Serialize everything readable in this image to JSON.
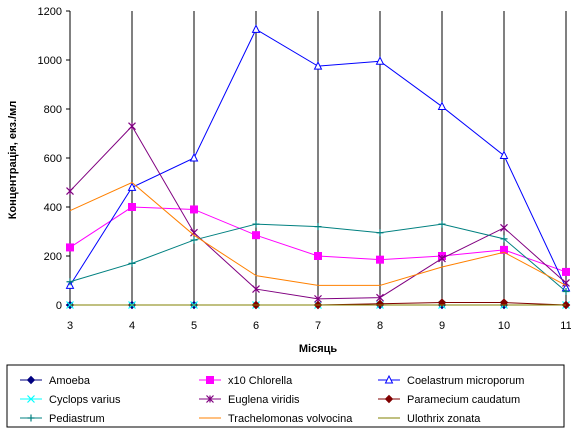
{
  "chart_data": {
    "type": "line",
    "xlabel": "Місяць",
    "ylabel": "Концентрація, екз./мл",
    "x": [
      3,
      4,
      5,
      6,
      7,
      8,
      9,
      10,
      11
    ],
    "xlim": [
      3,
      11
    ],
    "ylim": [
      0,
      1200
    ],
    "yticks": [
      0,
      200,
      400,
      600,
      800,
      1000,
      1200
    ],
    "grid": {
      "vertical": true,
      "horizontal": false
    },
    "legend_position": "bottom",
    "series": [
      {
        "name": "Amoeba",
        "color": "#000080",
        "marker": "diamond-filled",
        "values": [
          0,
          0,
          0,
          0,
          0,
          0,
          0,
          0,
          0
        ]
      },
      {
        "name": "x10 Chlorella",
        "color": "#ff00ff",
        "marker": "square-filled",
        "values": [
          235,
          400,
          390,
          285,
          200,
          185,
          200,
          225,
          135
        ]
      },
      {
        "name": "Coelastrum microporum",
        "color": "#0000ff",
        "marker": "triangle-open",
        "values": [
          80,
          480,
          600,
          1125,
          975,
          995,
          810,
          610,
          70
        ]
      },
      {
        "name": "Cyclops varius",
        "color": "#00ffff",
        "marker": "x",
        "values": [
          0,
          0,
          0,
          0,
          0,
          0,
          0,
          0,
          0
        ]
      },
      {
        "name": "Euglena viridis",
        "color": "#800080",
        "marker": "star",
        "values": [
          465,
          730,
          295,
          65,
          25,
          30,
          190,
          315,
          90
        ]
      },
      {
        "name": "Paramecium caudatum",
        "color": "#800000",
        "marker": "diamond-filled",
        "values": [
          null,
          null,
          null,
          0,
          0,
          5,
          10,
          10,
          0
        ]
      },
      {
        "name": "Pediastrum",
        "color": "#008080",
        "marker": "plus",
        "values": [
          95,
          170,
          265,
          330,
          320,
          295,
          330,
          270,
          55
        ]
      },
      {
        "name": "Trachelomonas volvocina",
        "color": "#ff8000",
        "marker": "none",
        "values": [
          385,
          500,
          285,
          120,
          80,
          80,
          155,
          215,
          80
        ]
      },
      {
        "name": "Ulothrix zonata",
        "color": "#808000",
        "marker": "none",
        "values": [
          0,
          0,
          0,
          0,
          0,
          0,
          0,
          0,
          0
        ]
      }
    ]
  }
}
